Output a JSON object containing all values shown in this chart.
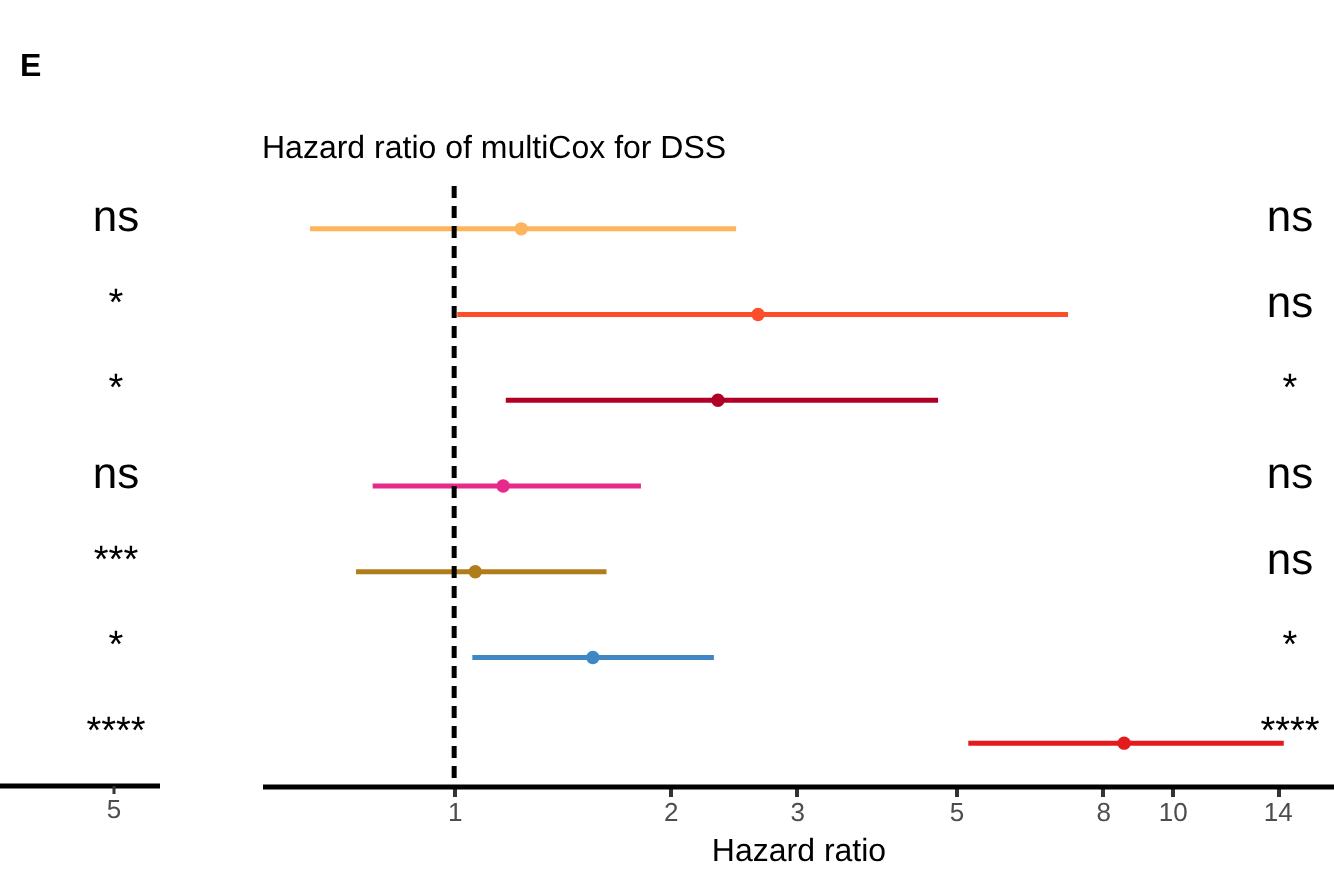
{
  "chart_data": [
    {
      "type": "other",
      "title": "E",
      "categories": [
        null,
        null,
        null,
        null,
        null,
        null,
        null
      ],
      "annotations": [
        "ns",
        "*",
        "*",
        "ns",
        "***",
        "*",
        "****",
        "5"
      ]
    },
    {
      "type": "scatter",
      "orientation": "horizontal",
      "title": "Hazard ratio of multiCox for DSS",
      "xlabel": "Hazard ratio",
      "log": "x",
      "tick_labels": "x",
      "grid": false,
      "marker": "circle",
      "categories": [
        null,
        null,
        null,
        null,
        null,
        null,
        null
      ],
      "values": [
        1.24,
        2.65,
        2.33,
        1.17,
        1.07,
        1.56,
        8.57
      ],
      "errors": [
        [
          0.63,
          2.47
        ],
        [
          1.01,
          7.16
        ],
        [
          1.18,
          4.72
        ],
        [
          0.77,
          1.82
        ],
        [
          0.73,
          1.63
        ],
        [
          1.06,
          2.3
        ],
        [
          5.2,
          14.3
        ]
      ],
      "colors": [
        "#fdb45c",
        "#fc4e2a",
        "#b10026",
        "#e7298a",
        "#b07d1b",
        "#3f88c5",
        "#e41a1c"
      ],
      "xlim": [
        0.54,
        16.8
      ],
      "xticks": [
        1,
        2,
        3,
        5,
        8,
        10,
        14
      ],
      "ref_lines": [
        {
          "axis": "x",
          "value": 1,
          "line_style": "dashed",
          "color": "#000000"
        }
      ],
      "annotations": [
        "ns",
        "ns",
        "*",
        "ns",
        "ns",
        "*",
        "****"
      ]
    }
  ]
}
